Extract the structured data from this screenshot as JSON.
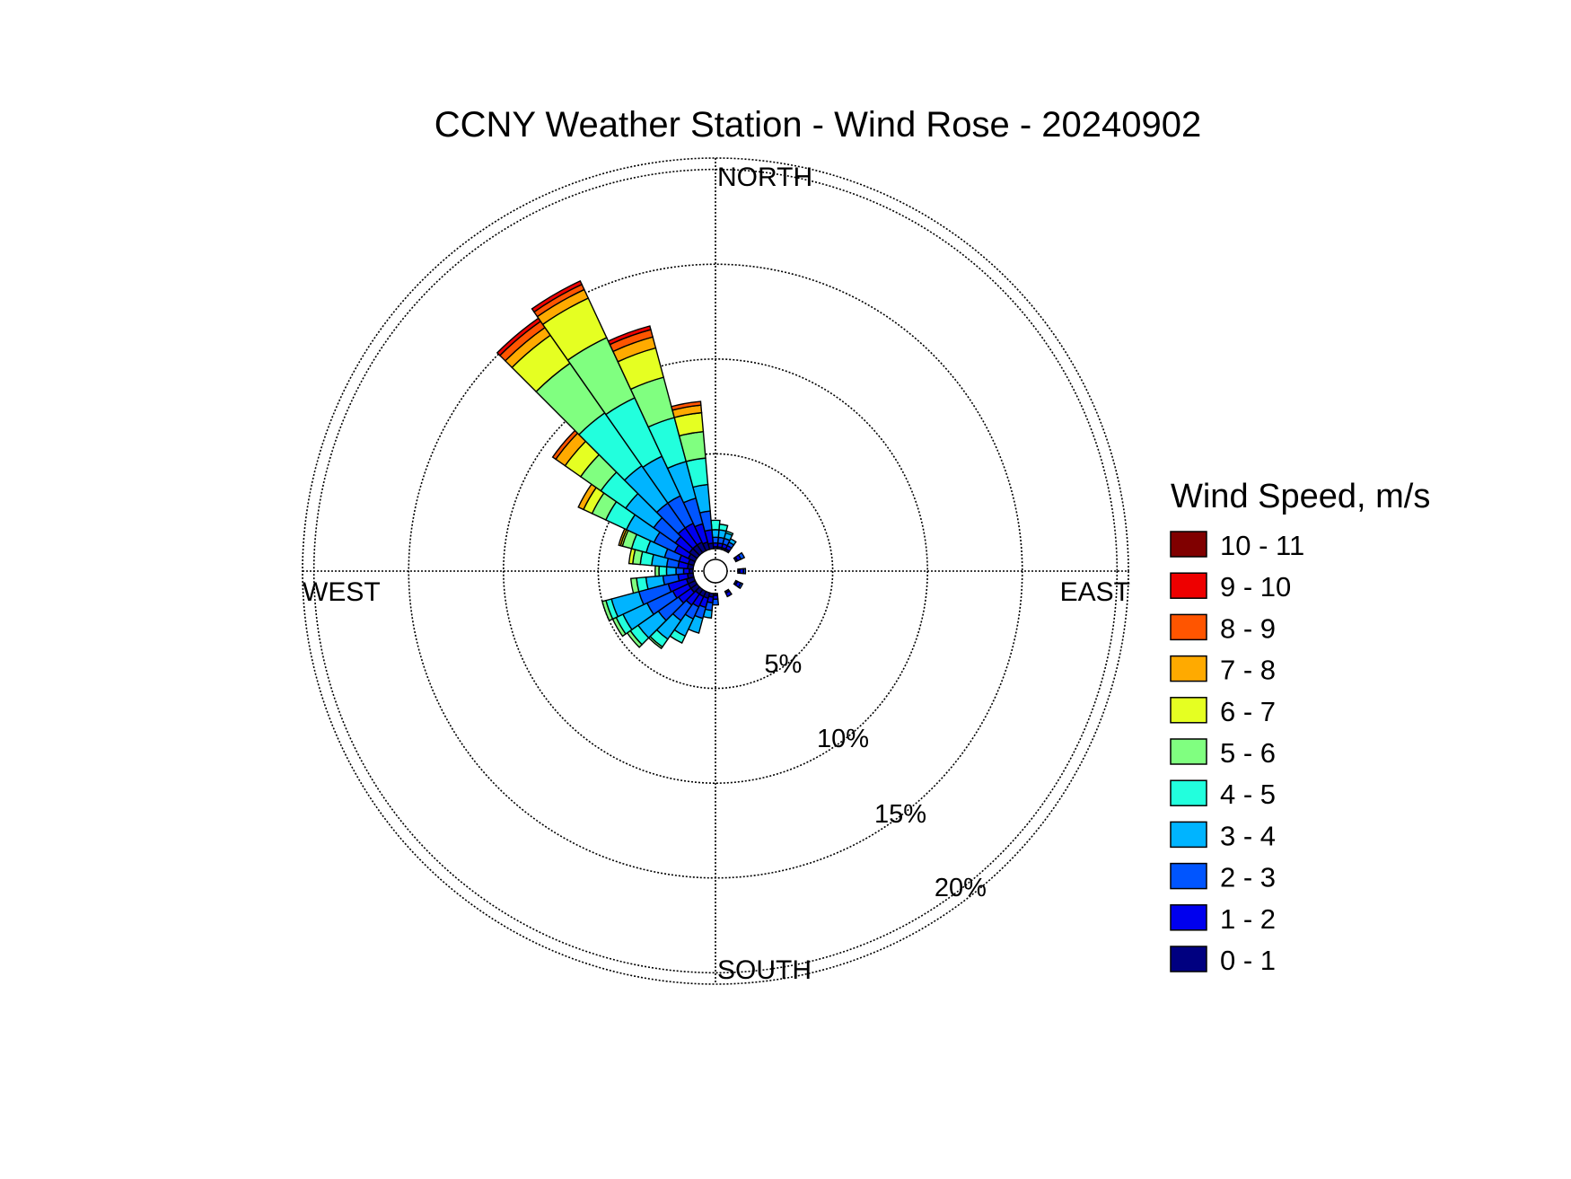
{
  "chart_data": {
    "type": "wind-rose",
    "title": "CCNY Weather Station - Wind Rose - 20240902",
    "direction_labels": [
      "NORTH",
      "EAST",
      "SOUTH",
      "WEST"
    ],
    "radial_ticks": [
      {
        "value": 5,
        "label": "5%"
      },
      {
        "value": 10,
        "label": "10%"
      },
      {
        "value": 15,
        "label": "15%"
      },
      {
        "value": 20,
        "label": "20%"
      }
    ],
    "r_max": 20.6,
    "grid": true,
    "legend": {
      "title": "Wind Speed, m/s",
      "position": "right",
      "bins": [
        {
          "label": "10 - 11",
          "color": "#800000"
        },
        {
          "label": "9 - 10",
          "color": "#ee0000"
        },
        {
          "label": "8 - 9",
          "color": "#ff5500"
        },
        {
          "label": "7 - 8",
          "color": "#ffaa00"
        },
        {
          "label": "6 - 7",
          "color": "#e5ff22"
        },
        {
          "label": "5 - 6",
          "color": "#80ff80"
        },
        {
          "label": "4 - 5",
          "color": "#22ffdd"
        },
        {
          "label": "3 - 4",
          "color": "#00b4ff"
        },
        {
          "label": "2 - 3",
          "color": "#0055ff"
        },
        {
          "label": "1 - 2",
          "color": "#0000ee"
        },
        {
          "label": "0 - 1",
          "color": "#000080"
        }
      ]
    },
    "speed_bins_ascending": [
      "0 - 1",
      "1 - 2",
      "2 - 3",
      "3 - 4",
      "4 - 5",
      "5 - 6",
      "6 - 7",
      "7 - 8",
      "8 - 9",
      "9 - 10",
      "10 - 11"
    ],
    "sector_width_deg": 10,
    "sectors": [
      {
        "direction_deg": 0,
        "cumulative_pct": [
          0.1,
          0.3,
          0.6,
          1.0,
          1.5
        ]
      },
      {
        "direction_deg": 10,
        "cumulative_pct": [
          0.1,
          0.3,
          0.6,
          1.0,
          1.3
        ]
      },
      {
        "direction_deg": 20,
        "cumulative_pct": [
          0.1,
          0.3,
          0.6,
          0.9,
          1.0
        ]
      },
      {
        "direction_deg": 30,
        "cumulative_pct": [
          0.1,
          0.3,
          0.5,
          0.7
        ]
      },
      {
        "direction_deg": 60,
        "cumulative_pct": [
          0.1,
          0.3,
          0.5
        ]
      },
      {
        "direction_deg": 90,
        "cumulative_pct": [
          0.1,
          0.3,
          0.4
        ]
      },
      {
        "direction_deg": 120,
        "cumulative_pct": [
          0.1,
          0.3,
          0.4
        ]
      },
      {
        "direction_deg": 150,
        "cumulative_pct": [
          0.1,
          0.3
        ]
      },
      {
        "direction_deg": 180,
        "cumulative_pct": [
          0.1,
          0.3,
          0.6
        ]
      },
      {
        "direction_deg": 190,
        "cumulative_pct": [
          0.2,
          0.5,
          0.9,
          1.3
        ]
      },
      {
        "direction_deg": 200,
        "cumulative_pct": [
          0.3,
          0.8,
          1.4,
          2.2
        ]
      },
      {
        "direction_deg": 210,
        "cumulative_pct": [
          0.3,
          0.9,
          1.6,
          2.6,
          3.0
        ]
      },
      {
        "direction_deg": 220,
        "cumulative_pct": [
          0.3,
          1.0,
          2.0,
          3.2,
          3.7,
          3.8
        ]
      },
      {
        "direction_deg": 230,
        "cumulative_pct": [
          0.4,
          1.2,
          2.5,
          3.8,
          4.3,
          4.5
        ]
      },
      {
        "direction_deg": 240,
        "cumulative_pct": [
          0.4,
          1.3,
          2.8,
          4.2,
          4.6,
          4.8
        ]
      },
      {
        "direction_deg": 250,
        "cumulative_pct": [
          0.4,
          1.4,
          3.0,
          4.5,
          4.8,
          5.0
        ]
      },
      {
        "direction_deg": 260,
        "cumulative_pct": [
          0.3,
          0.8,
          1.6,
          2.5,
          3.0,
          3.3
        ]
      },
      {
        "direction_deg": 270,
        "cumulative_pct": [
          0.2,
          0.5,
          0.9,
          1.4,
          1.8,
          2.0
        ]
      },
      {
        "direction_deg": 280,
        "cumulative_pct": [
          0.3,
          0.8,
          1.4,
          2.2,
          2.8,
          3.2,
          3.4
        ]
      },
      {
        "direction_deg": 290,
        "cumulative_pct": [
          0.3,
          0.8,
          1.6,
          2.6,
          3.4,
          3.9,
          4.0,
          4.1
        ]
      },
      {
        "direction_deg": 300,
        "cumulative_pct": [
          0.4,
          1.2,
          2.4,
          4.0,
          5.2,
          6.0,
          6.5,
          6.8
        ]
      },
      {
        "direction_deg": 310,
        "cumulative_pct": [
          0.5,
          1.4,
          2.8,
          4.6,
          6.2,
          7.5,
          8.5,
          9.1,
          9.3
        ]
      },
      {
        "direction_deg": 320,
        "cumulative_pct": [
          0.5,
          1.6,
          3.2,
          5.6,
          9.0,
          12.2,
          14.0,
          14.5,
          14.9,
          15.1
        ]
      },
      {
        "direction_deg": 330,
        "cumulative_pct": [
          0.5,
          1.6,
          3.2,
          5.5,
          8.9,
          12.4,
          14.7,
          15.2,
          15.5,
          15.7
        ]
      },
      {
        "direction_deg": 340,
        "cumulative_pct": [
          0.4,
          1.4,
          2.8,
          4.8,
          7.2,
          9.4,
          11.0,
          11.6,
          12.0,
          12.2
        ]
      },
      {
        "direction_deg": 350,
        "cumulative_pct": [
          0.3,
          1.0,
          2.0,
          3.4,
          4.8,
          6.2,
          7.2,
          7.6,
          7.8
        ]
      }
    ]
  }
}
